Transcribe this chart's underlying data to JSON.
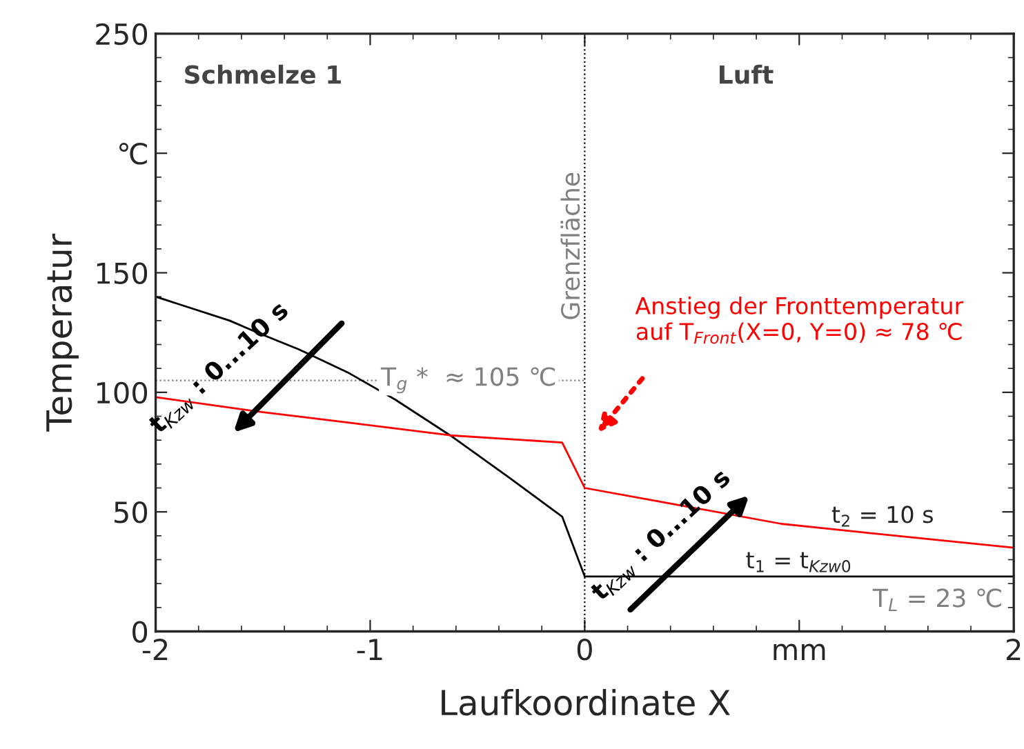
{
  "chart_data": {
    "type": "line",
    "xlabel": "Laufkoordinate X",
    "ylabel": "Temperatur",
    "xlim": [
      -2,
      2
    ],
    "ylim": [
      0,
      250
    ],
    "xticks": [
      -2,
      -1,
      0,
      {
        "value": 1,
        "label": "mm"
      },
      2
    ],
    "yticks": [
      0,
      50,
      100,
      150,
      {
        "value": 200,
        "label": "℃"
      },
      250
    ],
    "grid": false,
    "legend": false,
    "marker": "none",
    "line_style": "solid",
    "series": [
      {
        "name": "t$_{1}$ = t$_{Kzw0}$",
        "color": "#000000",
        "x": [
          -2,
          -1.655,
          -1.526,
          -1.333,
          -1.098,
          -0.884,
          -0.627,
          -0.347,
          -0.105,
          0,
          2
        ],
        "values": [
          140,
          130,
          125,
          118,
          108,
          97,
          82,
          64,
          48,
          23,
          23
        ]
      },
      {
        "name": "t$_{2}$ = 10 s",
        "color": "#ff0000",
        "x": [
          -2,
          -1.526,
          -1.163,
          -0.627,
          -0.105,
          0,
          0.369,
          0.916,
          1.453,
          2
        ],
        "values": [
          98,
          92,
          88,
          82,
          79,
          60,
          54,
          45,
          40,
          35
        ]
      }
    ],
    "ref_lines": [
      {
        "axis": "x",
        "value": 0,
        "label": "Grenzfläche",
        "color": "#000000",
        "line_style": "dotted"
      },
      {
        "axis": "y",
        "value": 105,
        "label": "T$_{g}$ *  ≈ 105 ℃",
        "color": "#808080",
        "line_style": "dotted"
      }
    ],
    "annotations": [
      "Schmelze 1",
      "Luft",
      "Anstieg der Fronttemperatur\nauf T$_{Front}$(X=0, Y=0) ≈ 78 ℃",
      "t$_{Kzw}$ : 0...10 s",
      "t$_{Kzw}$ : 0...10 s",
      {
        "text": "T$_{L}$ = 23 ℃",
        "x": 2,
        "y": 23
      }
    ]
  }
}
